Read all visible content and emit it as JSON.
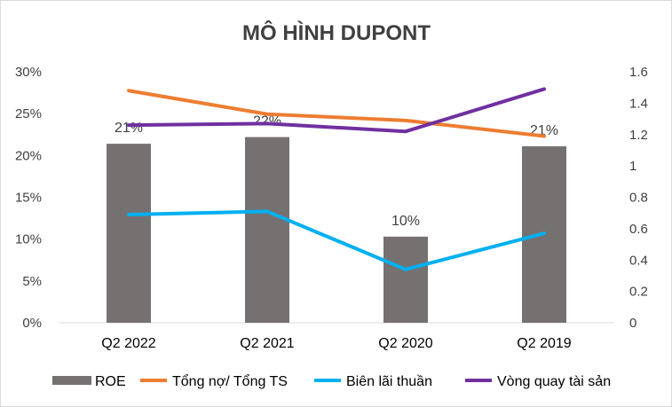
{
  "chart_data": {
    "type": "bar",
    "title": "MÔ HÌNH DUPONT",
    "categories": [
      "Q2 2022",
      "Q2 2021",
      "Q2 2020",
      "Q2 2019"
    ],
    "y_left": {
      "ylim": [
        0,
        0.3
      ],
      "ticks": [
        "0%",
        "5%",
        "10%",
        "15%",
        "20%",
        "25%",
        "30%"
      ]
    },
    "y_right": {
      "ylim": [
        0,
        1.6
      ],
      "ticks": [
        "0",
        "0.2",
        "0.4",
        "0.6",
        "0.8",
        "1",
        "1.2",
        "1.4",
        "1.6"
      ]
    },
    "grid": false,
    "legend_position": "bottom",
    "series": [
      {
        "name": "ROE",
        "kind": "bar",
        "axis": "left",
        "color": "#767171",
        "values": [
          0.214,
          0.222,
          0.103,
          0.211
        ],
        "labels": [
          "21%",
          "22%",
          "10%",
          "21%"
        ]
      },
      {
        "name": "Tổng nợ/ Tổng TS",
        "kind": "line",
        "axis": "right",
        "color": "#ED7D31",
        "values": [
          1.48,
          1.33,
          1.29,
          1.19
        ]
      },
      {
        "name": "Biên lãi thuần",
        "kind": "line",
        "axis": "right",
        "color": "#00B0F0",
        "values": [
          0.69,
          0.71,
          0.34,
          0.57
        ]
      },
      {
        "name": "Vòng quay tài sản",
        "kind": "line",
        "axis": "right",
        "color": "#7030A0",
        "values": [
          1.26,
          1.27,
          1.22,
          1.49
        ]
      }
    ]
  }
}
